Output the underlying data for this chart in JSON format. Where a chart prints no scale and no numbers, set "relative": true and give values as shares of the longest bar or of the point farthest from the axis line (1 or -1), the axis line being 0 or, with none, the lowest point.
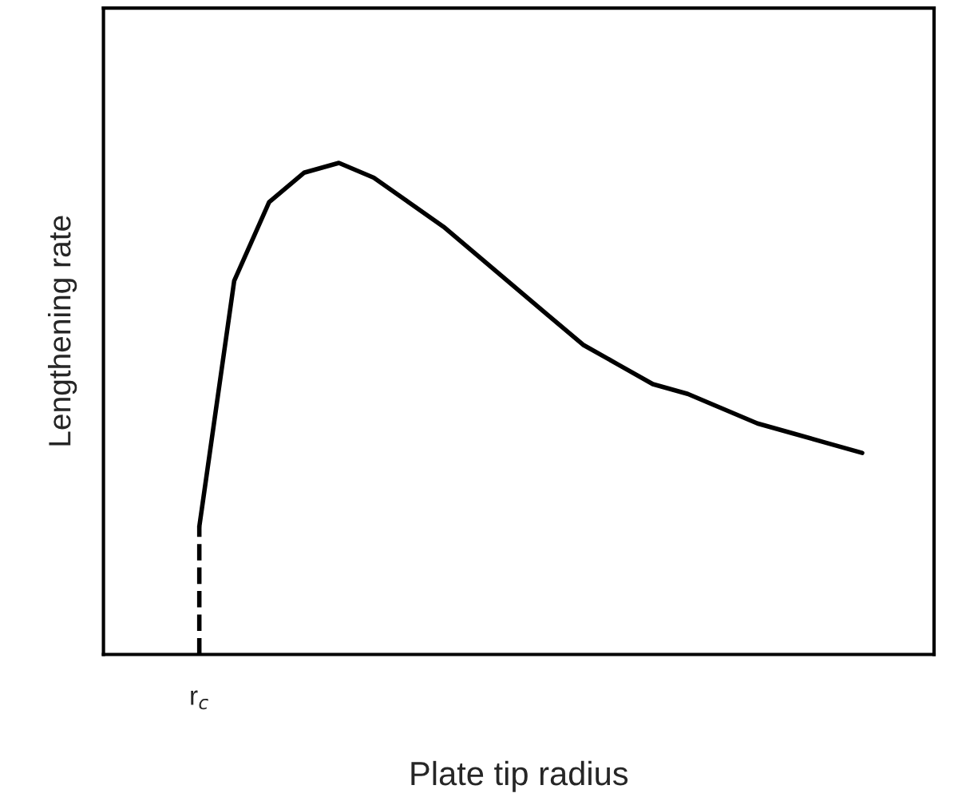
{
  "chart_data": {
    "type": "line",
    "relative": true,
    "xlabel": "Plate tip radius",
    "ylabel": "Lengthening rate",
    "marker": "none",
    "annotations": [
      "r$_{c}$"
    ],
    "categories": [
      null,
      null,
      null,
      null,
      null,
      null,
      null,
      null,
      null,
      null,
      null,
      null,
      null,
      null,
      null,
      null,
      null,
      null,
      null,
      null
    ],
    "series": [
      {
        "color": "#000000",
        "values": [
          0.26,
          0.76,
          0.92,
          0.98,
          1.0,
          0.97,
          0.92,
          0.87,
          0.81,
          0.75,
          0.69,
          0.63,
          0.59,
          0.55,
          0.53,
          0.5,
          0.47,
          0.45,
          0.43,
          0.41
        ]
      }
    ]
  }
}
